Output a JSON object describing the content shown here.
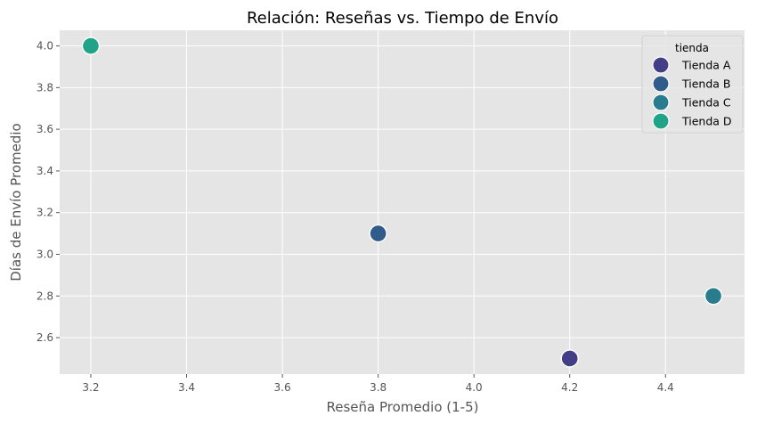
{
  "chart_data": {
    "type": "scatter",
    "title": "Relación: Reseñas vs. Tiempo de Envío",
    "xlabel": "Reseña Promedio (1-5)",
    "ylabel": "Días de Envío Promedio",
    "xlim": [
      3.135,
      4.565
    ],
    "ylim": [
      2.425,
      4.075
    ],
    "xticks": [
      "3.2",
      "3.4",
      "3.6",
      "3.8",
      "4.0",
      "4.2",
      "4.4"
    ],
    "yticks": [
      "2.6",
      "2.8",
      "3.0",
      "3.2",
      "3.4",
      "3.6",
      "3.8",
      "4.0"
    ],
    "grid": true,
    "legend": {
      "title": "tienda",
      "placement": "top-right"
    },
    "series": [
      {
        "name": "Tienda A",
        "color": "#433e85",
        "points": [
          {
            "x": 4.2,
            "y": 2.5
          }
        ]
      },
      {
        "name": "Tienda B",
        "color": "#2f5c8a",
        "points": [
          {
            "x": 3.8,
            "y": 3.1
          }
        ]
      },
      {
        "name": "Tienda C",
        "color": "#297b8e",
        "points": [
          {
            "x": 4.5,
            "y": 2.8
          }
        ]
      },
      {
        "name": "Tienda D",
        "color": "#20a386",
        "points": [
          {
            "x": 3.2,
            "y": 4.0
          }
        ]
      }
    ],
    "colors": {
      "plot_background": "#e5e5e5",
      "grid": "#ffffff"
    }
  }
}
